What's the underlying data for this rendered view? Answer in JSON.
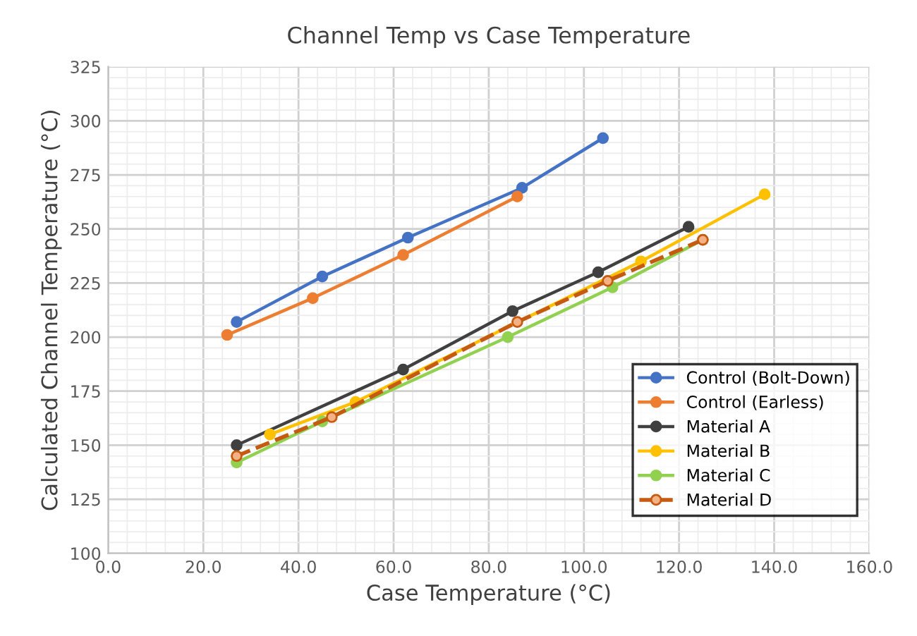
{
  "chart_data": {
    "type": "line",
    "title": "Channel Temp vs Case Temperature",
    "xlabel": "Case Temperature (°C)",
    "ylabel": "Calculated Channel Temperature (°C)",
    "xlim": [
      0,
      160
    ],
    "xticks": [
      {
        "value": 0,
        "label": "0.0"
      },
      {
        "value": 20,
        "label": "20.0"
      },
      {
        "value": 40,
        "label": "40.0"
      },
      {
        "value": 60,
        "label": "60.0"
      },
      {
        "value": 80,
        "label": "80.0"
      },
      {
        "value": 100,
        "label": "100.0"
      },
      {
        "value": 120,
        "label": "120.0"
      },
      {
        "value": 140,
        "label": "140.0"
      },
      {
        "value": 160,
        "label": "160.0"
      }
    ],
    "ylim": [
      100,
      325
    ],
    "yticks": [
      100,
      125,
      150,
      175,
      200,
      225,
      250,
      275,
      300,
      325
    ],
    "grid": true,
    "legend": "bottom right",
    "marker": "circle",
    "series": [
      {
        "name": "Control (Bolt-Down)",
        "color": "#4472c4",
        "x": [
          27,
          45,
          63,
          87,
          104
        ],
        "values": [
          207,
          228,
          246,
          269,
          292
        ]
      },
      {
        "name": "Control (Earless)",
        "color": "#ed7d31",
        "x": [
          25,
          43,
          62,
          86
        ],
        "values": [
          201,
          218,
          238,
          265
        ]
      },
      {
        "name": "Material A",
        "color": "#404040",
        "x": [
          27,
          62,
          85,
          103,
          122
        ],
        "values": [
          150,
          185,
          212,
          230,
          251
        ]
      },
      {
        "name": "Material B",
        "color": "#ffc000",
        "x": [
          34,
          52,
          112,
          138
        ],
        "values": [
          155,
          170,
          235,
          266
        ]
      },
      {
        "name": "Material C",
        "color": "#92d050",
        "x": [
          27,
          45,
          84,
          106,
          125
        ],
        "values": [
          142,
          161,
          200,
          223,
          245
        ]
      },
      {
        "name": "Material D",
        "color": "#c55a11",
        "line_style": "dashed",
        "x": [
          27,
          47,
          86,
          105,
          125
        ],
        "values": [
          145,
          163,
          207,
          226,
          245
        ]
      }
    ]
  }
}
